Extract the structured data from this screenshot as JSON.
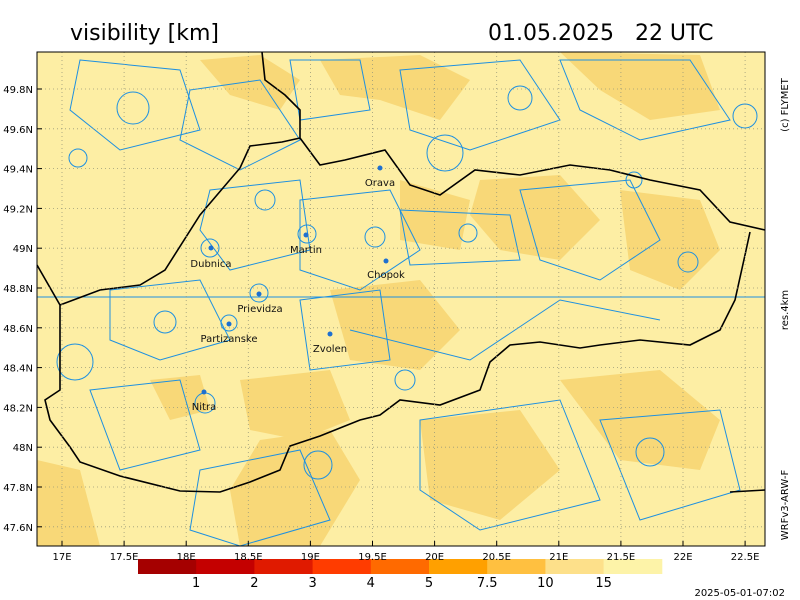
{
  "header": {
    "title": "visibility [km]",
    "datetime": "01.05.2025   22 UTC"
  },
  "credits": {
    "right_top": "(c) FLYMET",
    "right_middle": "res.4km",
    "right_bottom": "WRFv3-ARW-F",
    "timestamp": "2025-05-01-07:02"
  },
  "axes": {
    "lon_labels": [
      "17E",
      "17.5E",
      "18E",
      "18.5E",
      "19E",
      "19.5E",
      "20E",
      "20.5E",
      "21E",
      "21.5E",
      "22E",
      "22.5E"
    ],
    "lat_labels": [
      "49.8N",
      "49.6N",
      "49.4N",
      "49.2N",
      "49N",
      "48.8N",
      "48.6N",
      "48.4N",
      "48.2N",
      "48N",
      "47.8N",
      "47.6N"
    ]
  },
  "cities": [
    "Orava",
    "Martin",
    "Dubnica",
    "Chopok",
    "Prievidza",
    "Partizanske",
    "Zvolen",
    "Nitra"
  ],
  "colorbar": {
    "labels": [
      "1",
      "2",
      "3",
      "4",
      "5",
      "7.5",
      "10",
      "15"
    ],
    "colors": [
      "#a50000",
      "#c40000",
      "#e01a00",
      "#ff3c00",
      "#ff6a00",
      "#ffa000",
      "#ffc040",
      "#fde08a",
      "#fdf3a8"
    ]
  }
}
